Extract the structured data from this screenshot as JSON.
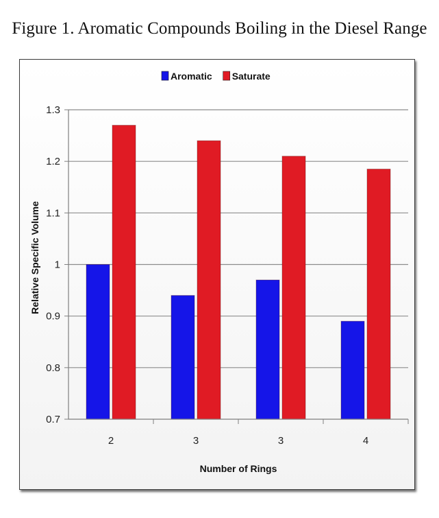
{
  "figure_title": "Figure 1. Aromatic Compounds Boiling in the Diesel Range",
  "chart_data": {
    "type": "bar",
    "title": "",
    "xlabel": "Number of Rings",
    "ylabel": "Relative Specific Volume",
    "categories": [
      "2",
      "3",
      "3",
      "4"
    ],
    "ylim": [
      0.7,
      1.3
    ],
    "yticks": [
      "0.7",
      "0.8",
      "0.9",
      "1",
      "1.1",
      "1.2",
      "1.3"
    ],
    "yticks_values": [
      0.7,
      0.8,
      0.9,
      1.0,
      1.1,
      1.2,
      1.3
    ],
    "grid": true,
    "legend_position": "top",
    "series": [
      {
        "name": "Aromatic",
        "values": [
          1.0,
          0.94,
          0.97,
          0.89
        ],
        "color": "#1515e8"
      },
      {
        "name": "Saturate",
        "values": [
          1.27,
          1.24,
          1.21,
          1.185
        ],
        "color": "#e01b24"
      }
    ]
  }
}
